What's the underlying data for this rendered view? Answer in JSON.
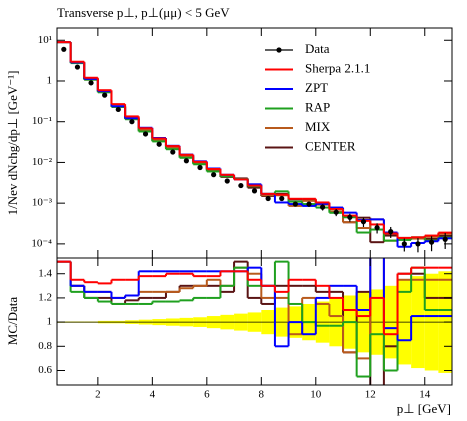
{
  "chart_data": [
    {
      "type": "histogram",
      "title": "Transverse p⊥, p⊥(μμ) < 5 GeV",
      "y_label": "1/Nev dNchg/dp⊥ [GeV⁻¹]",
      "ylog": true,
      "legend": "upper right",
      "bins": [
        0.5,
        1,
        1.5,
        2,
        2.5,
        3,
        3.5,
        4,
        4.5,
        5,
        5.5,
        6,
        6.5,
        7,
        7.5,
        8,
        8.5,
        9,
        9.5,
        10,
        10.5,
        11,
        11.5,
        12,
        12.5,
        13,
        13.5,
        14,
        14.5,
        15
      ],
      "xlim": [
        0.5,
        15
      ],
      "ylim": [
        4.5e-05,
        20
      ],
      "yticks": [
        {
          "value": 0.0001,
          "label": "10⁻⁴"
        },
        {
          "value": 0.001,
          "label": "10⁻³"
        },
        {
          "value": 0.01,
          "label": "10⁻²"
        },
        {
          "value": 0.1,
          "label": "10⁻¹"
        },
        1,
        {
          "value": 10,
          "label": "10¹"
        }
      ],
      "series": [
        {
          "name": "Data",
          "color": "#000000",
          "style": "points",
          "values": [
            6,
            2.2,
            0.9,
            0.45,
            0.2,
            0.1,
            0.05,
            0.028,
            0.018,
            0.011,
            0.0075,
            0.005,
            0.0035,
            0.0027,
            0.002,
            0.0013,
            0.0013,
            0.00095,
            0.00095,
            0.0008,
            0.0006,
            0.00045,
            0.00035,
            0.00025,
            0.0002,
            0.0001,
            0.0001,
            0.00011,
            0.00013
          ],
          "errors": [
            0.03,
            0.011,
            0.0045,
            0.0045,
            0.002,
            0.0015,
            0.001,
            0.0007,
            0.00054,
            0.000385,
            0.0003,
            0.00025,
            0.00021,
            0.00019,
            0.00016,
            0.00013,
            0.00016,
            0.00012,
            0.00014,
            0.00014,
            0.00012,
            0.0001,
            9e-05,
            7e-05,
            6e-05,
            3.5e-05,
            3.8e-05,
            4.4e-05,
            5.5e-05
          ]
        },
        {
          "name": "Sherpa 2.1.1",
          "color": "#ff0000",
          "values": [
            9,
            2.97,
            1.2,
            0.594,
            0.27,
            0.135,
            0.069,
            0.0386,
            0.0252,
            0.0154,
            0.01035,
            0.0069,
            0.00497,
            0.00383,
            0.0027,
            0.00169,
            0.001625,
            0.00128,
            0.00128,
            0.00104,
            0.00072,
            0.000495,
            0.000368,
            0.0003,
            0.00018,
            0.00014,
            0.000145,
            0.00016,
            0.000189
          ]
        },
        {
          "name": "ZPT",
          "color": "#0000ff",
          "values": [
            9,
            2.86,
            1.125,
            0.5625,
            0.24,
            0.122,
            0.071,
            0.0398,
            0.0256,
            0.0156,
            0.01065,
            0.0071,
            0.00497,
            0.00383,
            0.0029,
            0.00169,
            0.00104,
            0.00095,
            0.000855,
            0.00096,
            0.00078,
            0.000585,
            0.000385,
            0.0004,
            0.00019,
            8.5e-05,
            0.000105,
            0.000116,
            0.000137
          ]
        },
        {
          "name": "RAP",
          "color": "#1fa01f",
          "values": [
            9,
            2.75,
            1.08,
            0.5265,
            0.23,
            0.115,
            0.0575,
            0.0328,
            0.0211,
            0.013,
            0.009,
            0.006,
            0.00455,
            0.00392,
            0.0026,
            0.00169,
            0.00195,
            0.00109,
            0.00095,
            0.00078,
            0.00058,
            0.00045,
            0.00019,
            0.000225,
            0.00012,
            0.000125,
            0.000145,
            0.000121,
            0.000143
          ]
        },
        {
          "name": "MIX",
          "color": "#b85a1c",
          "values": [
            9,
            2.86,
            1.125,
            0.5625,
            0.24,
            0.122,
            0.0625,
            0.035,
            0.0225,
            0.0141,
            0.00975,
            0.00675,
            0.00455,
            0.00392,
            0.0028,
            0.00156,
            0.00156,
            0.000855,
            0.00114,
            0.00092,
            0.00063,
            0.00034,
            0.000245,
            0.0004,
            0.00012,
            0.000135,
            0.000135,
            0.000149,
            0.000176
          ]
        },
        {
          "name": "CENTER",
          "color": "#5a1414",
          "values": [
            9,
            2.86,
            1.08,
            0.54,
            0.23,
            0.118,
            0.06,
            0.0336,
            0.0225,
            0.0143,
            0.00975,
            0.0065,
            0.0044,
            0.00405,
            0.0024,
            0.0015,
            0.00169,
            0.00124,
            0.00124,
            0.001,
            0.00075,
            0.00034,
            0.00044,
            0.00011,
            0.00016,
            0.00014,
            0.00014,
            0.000132,
            0.000156
          ]
        }
      ]
    },
    {
      "type": "histogram",
      "y_label": "MC/Data",
      "x_label": "p⊥ [GeV]",
      "bins": [
        0.5,
        1,
        1.5,
        2,
        2.5,
        3,
        3.5,
        4,
        4.5,
        5,
        5.5,
        6,
        6.5,
        7,
        7.5,
        8,
        8.5,
        9,
        9.5,
        10,
        10.5,
        11,
        11.5,
        12,
        12.5,
        13,
        13.5,
        14,
        14.5,
        15
      ],
      "xlim": [
        0.5,
        15
      ],
      "ylim": [
        0.48,
        1.53
      ],
      "xticks": [
        2,
        4,
        6,
        8,
        10,
        12,
        14
      ],
      "yticks": [
        0.6,
        0.8,
        1,
        1.2,
        1.4
      ],
      "uncertainty": [
        0.005,
        0.005,
        0.005,
        0.01,
        0.01,
        0.015,
        0.02,
        0.025,
        0.03,
        0.035,
        0.04,
        0.05,
        0.06,
        0.07,
        0.08,
        0.1,
        0.12,
        0.13,
        0.15,
        0.17,
        0.2,
        0.22,
        0.25,
        0.27,
        0.3,
        0.35,
        0.38,
        0.4,
        0.42
      ],
      "uncertainty_color": "#ffff00",
      "series": [
        {
          "color": "#ff0000",
          "values": [
            1.5,
            1.35,
            1.33,
            1.32,
            1.35,
            1.35,
            1.38,
            1.38,
            1.4,
            1.4,
            1.38,
            1.38,
            1.42,
            1.42,
            1.35,
            1.3,
            1.25,
            1.35,
            1.35,
            1.3,
            1.2,
            1.1,
            1.05,
            1.2,
            0.9,
            1.4,
            1.45,
            1.45,
            1.45
          ]
        },
        {
          "color": "#0000ff",
          "values": [
            1.5,
            1.3,
            1.25,
            1.25,
            1.2,
            1.22,
            1.42,
            1.42,
            1.42,
            1.42,
            1.42,
            1.42,
            1.42,
            1.42,
            1.45,
            1.3,
            0.8,
            1.0,
            0.9,
            1.2,
            1.3,
            1.3,
            1.1,
            1.6,
            0.95,
            0.85,
            1.05,
            1.05,
            1.05
          ]
        },
        {
          "color": "#1fa01f",
          "values": [
            1.5,
            1.25,
            1.2,
            1.17,
            1.15,
            1.15,
            1.15,
            1.17,
            1.17,
            1.18,
            1.2,
            1.2,
            1.3,
            1.45,
            1.3,
            1.3,
            1.5,
            1.15,
            1.0,
            0.97,
            0.97,
            1.0,
            0.55,
            0.9,
            0.6,
            1.25,
            1.45,
            1.1,
            1.1
          ]
        },
        {
          "color": "#b85a1c",
          "values": [
            1.5,
            1.3,
            1.25,
            1.25,
            1.2,
            1.22,
            1.25,
            1.25,
            1.25,
            1.28,
            1.3,
            1.35,
            1.3,
            1.45,
            1.4,
            1.2,
            1.2,
            0.9,
            1.2,
            1.15,
            1.05,
            0.75,
            0.7,
            1.6,
            0.6,
            1.35,
            1.35,
            1.35,
            1.35
          ]
        },
        {
          "color": "#5a1414",
          "values": [
            1.5,
            1.3,
            1.2,
            1.2,
            1.15,
            1.18,
            1.2,
            1.2,
            1.25,
            1.3,
            1.3,
            1.3,
            1.25,
            1.5,
            1.2,
            1.15,
            1.3,
            1.3,
            1.3,
            1.25,
            1.25,
            0.75,
            1.25,
            0.45,
            0.8,
            1.4,
            1.4,
            1.2,
            1.2
          ]
        }
      ]
    }
  ]
}
